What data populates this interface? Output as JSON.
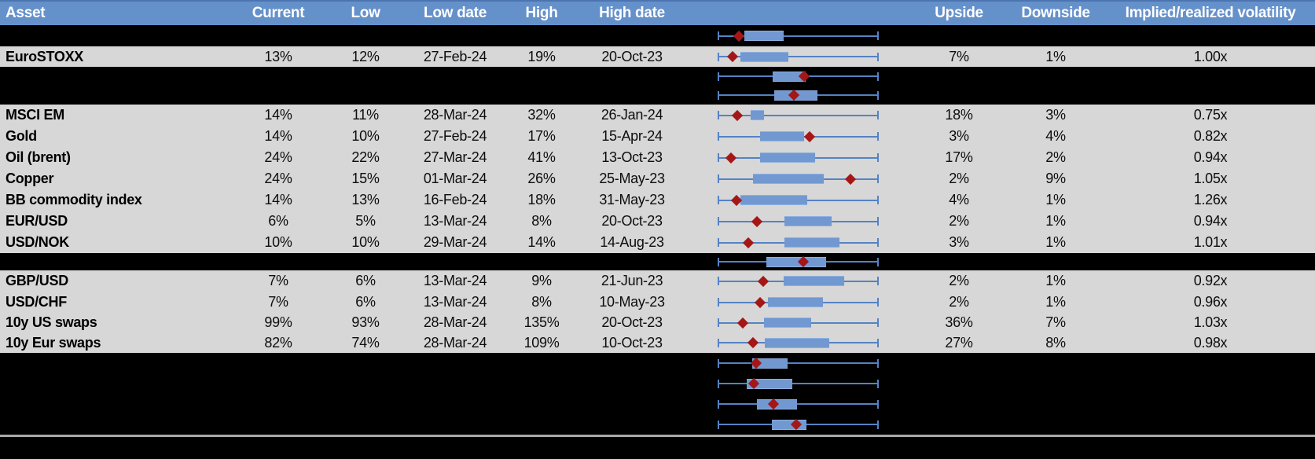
{
  "columns": {
    "asset": "Asset",
    "current": "Current",
    "low": "Low",
    "low_date": "Low date",
    "high": "High",
    "high_date": "High date",
    "upside": "Upside",
    "downside": "Downside",
    "implied_realized": "Implied/realized volatility"
  },
  "colors": {
    "header_bg": "#6591cb",
    "header_text": "#ffffff",
    "data_row_bg": "#d7d7d7",
    "hidden_row_bg": "#000000",
    "box_fill": "#7298d1",
    "whisker_blue": "#5582c4",
    "marker_red": "#a51717",
    "bottom_divider": "#a8a8a8"
  },
  "boxplot_column": {
    "type": "box-whisker",
    "note": "each row shows full low-high range whisker (0-100%), an inner range box and a red diamond marker; positions are % of whisker span",
    "whisker_span_pct": [
      0,
      100
    ]
  },
  "rows": [
    {
      "kind": "hidden",
      "chart": {
        "box_start_pct": 16.6,
        "box_end_pct": 41.0,
        "marker_pct": 13.4
      }
    },
    {
      "kind": "data",
      "asset": "EuroSTOXX",
      "current": "13%",
      "low": "12%",
      "low_date": "27-Feb-24",
      "high": "19%",
      "high_date": "20-Oct-23",
      "upside": "7%",
      "downside": "1%",
      "implied_realized": "1.00x",
      "chart": {
        "box_start_pct": 14.1,
        "box_end_pct": 43.9,
        "marker_pct": 9.3
      }
    },
    {
      "kind": "hidden",
      "chart": {
        "box_start_pct": 34.1,
        "box_end_pct": 54.6,
        "marker_pct": 53.5
      }
    },
    {
      "kind": "hidden",
      "chart": {
        "box_start_pct": 35.1,
        "box_end_pct": 62.0,
        "marker_pct": 47.3
      }
    },
    {
      "kind": "data",
      "asset": "MSCI EM",
      "current": "14%",
      "low": "11%",
      "low_date": "28-Mar-24",
      "high": "32%",
      "high_date": "26-Jan-24",
      "upside": "18%",
      "downside": "3%",
      "implied_realized": "0.75x",
      "chart": {
        "box_start_pct": 20.5,
        "box_end_pct": 28.8,
        "marker_pct": 12.2
      }
    },
    {
      "kind": "data",
      "asset": "Gold",
      "current": "14%",
      "low": "10%",
      "low_date": "27-Feb-24",
      "high": "17%",
      "high_date": "15-Apr-24",
      "upside": "3%",
      "downside": "4%",
      "implied_realized": "0.82x",
      "chart": {
        "box_start_pct": 26.3,
        "box_end_pct": 53.7,
        "marker_pct": 57.1
      }
    },
    {
      "kind": "data",
      "asset": "Oil (brent)",
      "current": "24%",
      "low": "22%",
      "low_date": "27-Mar-24",
      "high": "41%",
      "high_date": "13-Oct-23",
      "upside": "17%",
      "downside": "2%",
      "implied_realized": "0.94x",
      "chart": {
        "box_start_pct": 26.3,
        "box_end_pct": 60.5,
        "marker_pct": 8.3
      }
    },
    {
      "kind": "data",
      "asset": "Copper",
      "current": "24%",
      "low": "15%",
      "low_date": "01-Mar-24",
      "high": "26%",
      "high_date": "25-May-23",
      "upside": "2%",
      "downside": "9%",
      "implied_realized": "1.05x",
      "chart": {
        "box_start_pct": 22.0,
        "box_end_pct": 66.0,
        "marker_pct": 82.4
      }
    },
    {
      "kind": "data",
      "asset": "BB commodity index",
      "current": "14%",
      "low": "13%",
      "low_date": "16-Feb-24",
      "high": "18%",
      "high_date": "31-May-23",
      "upside": "4%",
      "downside": "1%",
      "implied_realized": "1.26x",
      "chart": {
        "box_start_pct": 14.1,
        "box_end_pct": 55.6,
        "marker_pct": 11.7
      }
    },
    {
      "kind": "data",
      "asset": "EUR/USD",
      "current": "6%",
      "low": "5%",
      "low_date": "13-Mar-24",
      "high": "8%",
      "high_date": "20-Oct-23",
      "upside": "2%",
      "downside": "1%",
      "implied_realized": "0.94x",
      "chart": {
        "box_start_pct": 41.5,
        "box_end_pct": 70.7,
        "marker_pct": 24.4
      }
    },
    {
      "kind": "data",
      "asset": "USD/NOK",
      "current": "10%",
      "low": "10%",
      "low_date": "29-Mar-24",
      "high": "14%",
      "high_date": "14-Aug-23",
      "upside": "3%",
      "downside": "1%",
      "implied_realized": "1.01x",
      "chart": {
        "box_start_pct": 41.5,
        "box_end_pct": 75.6,
        "marker_pct": 19.0
      }
    },
    {
      "kind": "hidden",
      "chart": {
        "box_start_pct": 30.2,
        "box_end_pct": 67.3,
        "marker_pct": 53.0
      }
    },
    {
      "kind": "data",
      "asset": "GBP/USD",
      "current": "7%",
      "low": "6%",
      "low_date": "13-Mar-24",
      "high": "9%",
      "high_date": "21-Jun-23",
      "upside": "2%",
      "downside": "1%",
      "implied_realized": "0.92x",
      "chart": {
        "box_start_pct": 41.1,
        "box_end_pct": 78.7,
        "marker_pct": 28.3
      }
    },
    {
      "kind": "data",
      "asset": "USD/CHF",
      "current": "7%",
      "low": "6%",
      "low_date": "13-Mar-24",
      "high": "8%",
      "high_date": "10-May-23",
      "upside": "2%",
      "downside": "1%",
      "implied_realized": "0.96x",
      "chart": {
        "box_start_pct": 31.2,
        "box_end_pct": 65.4,
        "marker_pct": 26.3
      }
    },
    {
      "kind": "data",
      "asset": "10y US swaps",
      "current": "99%",
      "low": "93%",
      "low_date": "28-Mar-24",
      "high": "135%",
      "high_date": "20-Oct-23",
      "upside": "36%",
      "downside": "7%",
      "implied_realized": "1.03x",
      "chart": {
        "box_start_pct": 28.8,
        "box_end_pct": 58.0,
        "marker_pct": 15.6
      }
    },
    {
      "kind": "data",
      "asset": "10y Eur swaps",
      "current": "82%",
      "low": "74%",
      "low_date": "28-Mar-24",
      "high": "109%",
      "high_date": "10-Oct-23",
      "upside": "27%",
      "downside": "8%",
      "implied_realized": "0.98x",
      "chart": {
        "box_start_pct": 29.3,
        "box_end_pct": 69.3,
        "marker_pct": 22.0
      }
    },
    {
      "kind": "hidden",
      "chart": {
        "box_start_pct": 21.5,
        "box_end_pct": 43.4,
        "marker_pct": 23.9
      }
    },
    {
      "kind": "hidden",
      "chart": {
        "box_start_pct": 18.0,
        "box_end_pct": 46.3,
        "marker_pct": 22.4
      }
    },
    {
      "kind": "hidden",
      "chart": {
        "box_start_pct": 24.4,
        "box_end_pct": 49.3,
        "marker_pct": 34.6
      }
    },
    {
      "kind": "hidden",
      "chart": {
        "box_start_pct": 33.7,
        "box_end_pct": 55.1,
        "marker_pct": 48.8
      }
    }
  ]
}
